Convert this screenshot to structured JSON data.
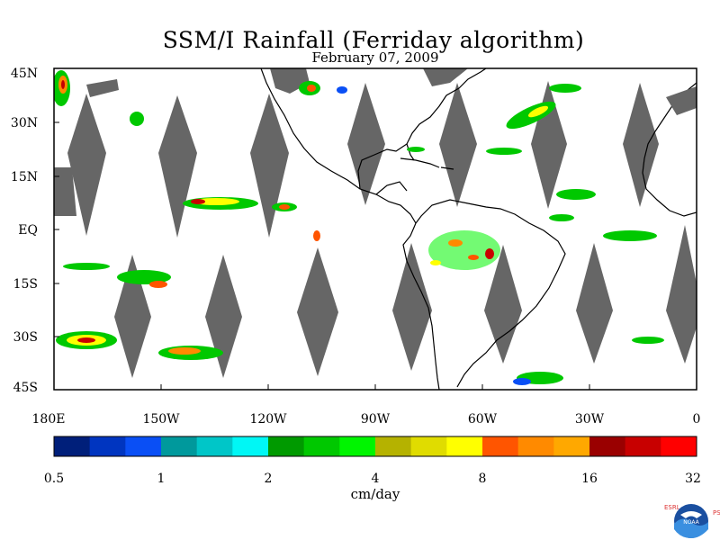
{
  "title": "SSM/I Rainfall (Ferriday algorithm)",
  "date": "February 07, 2009",
  "lat_labels": [
    "45N",
    "30N",
    "15N",
    "EQ",
    "15S",
    "30S",
    "45S"
  ],
  "lon_labels": [
    "180E",
    "150W",
    "120W",
    "90W",
    "60W",
    "30W",
    "0"
  ],
  "colorbar": {
    "unit": "cm/day",
    "tick_labels": [
      "0.5",
      "1",
      "2",
      "4",
      "8",
      "16",
      "32"
    ],
    "colors": [
      "#001f7a",
      "#0035c0",
      "#0a4ff5",
      "#00999c",
      "#00c6c8",
      "#00f7f5",
      "#009a00",
      "#00c800",
      "#00f500",
      "#b5b200",
      "#e0dc00",
      "#ffff00",
      "#ff5500",
      "#ff8a00",
      "#ffa800",
      "#9a0000",
      "#c80000",
      "#ff0000"
    ]
  },
  "logo": {
    "name": "NOAA",
    "left_letters": "ESRL",
    "right_letters": "PSD"
  }
}
